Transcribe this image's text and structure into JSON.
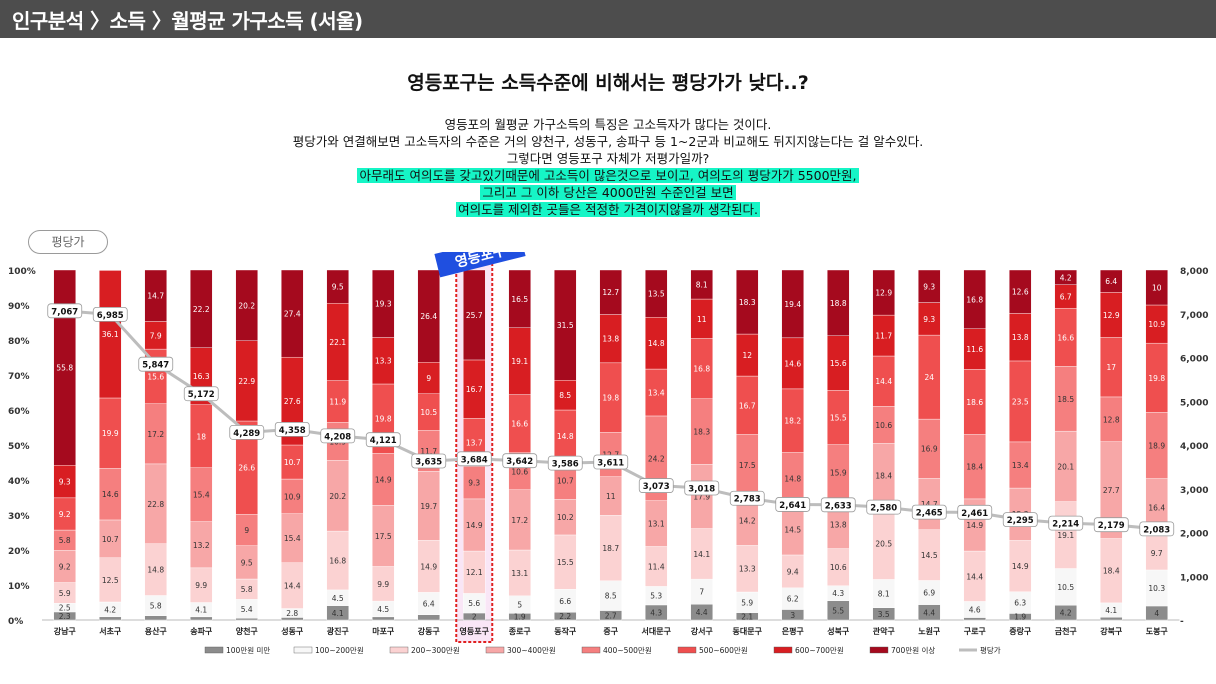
{
  "header": {
    "title": "인구분석 〉소득 〉월평균 가구소득 (서울)"
  },
  "headline": "영등포구는 소득수준에 비해서는 평당가가 낮다..?",
  "description": {
    "plain": [
      "영등포의 월평균 가구소득의 특징은 고소득자가 많다는 것이다.",
      "평당가와 연결해보면 고소득자의 수준은 거의 양천구, 성동구, 송파구 등 1~2군과 비교해도 뒤지지않는다는 걸 알수있다.",
      "그렇다면 영등포구 자체가 저평가일까?"
    ],
    "highlighted": [
      "아무래도 여의도를 갖고있기때문에 고소득이 많은것으로 보이고, 여의도의 평당가가 5500만원,",
      "그리고 그 이하 당산은 4000만원 수준인걸 보면",
      "여의도를 제외한 곳들은 적정한 가격이지않을까 생각된다."
    ]
  },
  "pill_label": "평당가",
  "callout_label": "영등포구",
  "colors": {
    "segments": [
      "#8c8c8c",
      "#f7f7f7",
      "#fbd2d2",
      "#f7a7a7",
      "#f57f7f",
      "#ef4f4f",
      "#d81e22",
      "#a50a1e"
    ],
    "line": "#bdbdbd",
    "highlight_border": "#e02020",
    "highlight_fill": "#f9e6f6",
    "callout_bg": "#1f4fe0"
  },
  "chart_data": {
    "type": "bar",
    "stacked": true,
    "normalized": true,
    "categories": [
      "강남구",
      "서초구",
      "용산구",
      "송파구",
      "양천구",
      "성동구",
      "광진구",
      "마포구",
      "강동구",
      "영등포구",
      "종로구",
      "동작구",
      "중구",
      "서대문구",
      "강서구",
      "동대문구",
      "은평구",
      "성북구",
      "관악구",
      "노원구",
      "구로구",
      "중랑구",
      "금천구",
      "강북구",
      "도봉구"
    ],
    "highlight_category": "영등포구",
    "series": [
      {
        "name": "100만원 미만",
        "values": [
          2.3,
          0.9,
          1.2,
          0.9,
          0.5,
          0.8,
          4.1,
          0.9,
          1.5,
          2,
          1.9,
          2.2,
          2.7,
          4.3,
          4.4,
          2.1,
          3,
          5.5,
          3.5,
          4.4,
          0.7,
          1.9,
          4.2,
          0.8,
          4
        ]
      },
      {
        "name": "100~200만원",
        "values": [
          2.5,
          4.2,
          5.8,
          4.1,
          5.4,
          2.8,
          4.5,
          4.5,
          6.4,
          5.6,
          5,
          6.6,
          8.5,
          5.3,
          7,
          5.9,
          6.2,
          4.3,
          8.1,
          6.9,
          4.6,
          6.3,
          10.5,
          4.1,
          10.3
        ]
      },
      {
        "name": "200~300만원",
        "values": [
          5.9,
          12.5,
          14.8,
          9.9,
          5.8,
          14.4,
          16.8,
          9.9,
          14.9,
          12.1,
          13.1,
          15.5,
          18.7,
          11.4,
          14.1,
          13.3,
          9.4,
          10.6,
          20.5,
          14.5,
          14.4,
          14.9,
          19.1,
          18.4,
          9.7
        ]
      },
      {
        "name": "300~400만원",
        "values": [
          9.2,
          10.7,
          22.8,
          13.2,
          9.5,
          15.4,
          20.2,
          17.5,
          19.7,
          14.9,
          17.2,
          10.2,
          11,
          13.1,
          17.9,
          14.2,
          14.5,
          13.8,
          18.4,
          14.7,
          14.9,
          15.2,
          20.1,
          27.7,
          16.4
        ]
      },
      {
        "name": "400~500만원",
        "values": [
          5.8,
          14.6,
          17.2,
          15.4,
          9,
          10.9,
          10.9,
          14.9,
          11.7,
          9.3,
          10.6,
          10.7,
          12.7,
          24.2,
          18.3,
          17.5,
          14.8,
          15.9,
          10.6,
          16.9,
          18.4,
          13.4,
          18.5,
          12.8,
          18.9
        ]
      },
      {
        "name": "500~600만원",
        "values": [
          9.2,
          19.9,
          15.6,
          18,
          26.6,
          10.7,
          11.9,
          19.8,
          10.5,
          13.7,
          16.6,
          14.8,
          19.8,
          13.4,
          16.8,
          16.7,
          18.2,
          15.5,
          14.4,
          24,
          18.6,
          23.5,
          16.6,
          17,
          19.8
        ]
      },
      {
        "name": "600~700만원",
        "values": [
          9.3,
          36.1,
          7.9,
          16.3,
          22.9,
          27.6,
          22.1,
          13.3,
          9,
          16.7,
          19.1,
          8.5,
          13.8,
          14.8,
          11,
          12,
          14.6,
          15.6,
          11.7,
          9.3,
          11.6,
          13.8,
          6.7,
          12.9,
          10.9
        ]
      },
      {
        "name": "700만원 이상",
        "values": [
          55.8,
          0.1,
          14.7,
          22.2,
          20.2,
          27.4,
          9.5,
          19.3,
          26.4,
          25.7,
          16.5,
          31.5,
          12.7,
          13.5,
          8.1,
          18.3,
          19.4,
          18.8,
          12.9,
          9.3,
          16.8,
          12.6,
          4.2,
          6.4,
          10
        ]
      }
    ],
    "price_series": {
      "name": "평당가",
      "values": [
        7067,
        6985,
        5847,
        5172,
        4289,
        4358,
        4208,
        4121,
        3635,
        3684,
        3642,
        3586,
        3611,
        3073,
        3018,
        2783,
        2641,
        2633,
        2580,
        2465,
        2461,
        2295,
        2214,
        2179,
        2083
      ]
    },
    "ylim": [
      0,
      100
    ],
    "ylim_right": [
      0,
      8000
    ],
    "y_ticks": [
      "0%",
      "10%",
      "20%",
      "30%",
      "40%",
      "50%",
      "60%",
      "70%",
      "80%",
      "90%",
      "100%"
    ],
    "y2_ticks": [
      "-",
      "1,000",
      "2,000",
      "3,000",
      "4,000",
      "5,000",
      "6,000",
      "7,000",
      "8,000"
    ],
    "legend_position": "bottom"
  }
}
